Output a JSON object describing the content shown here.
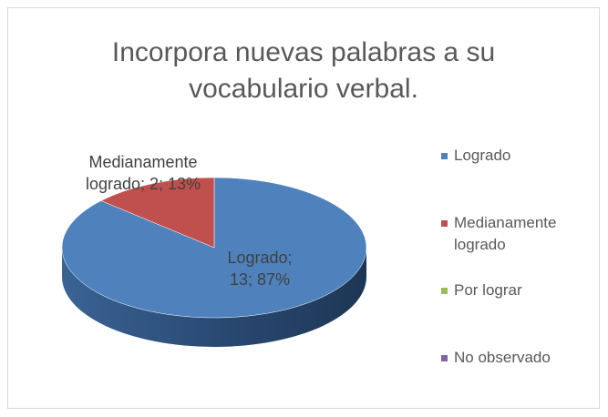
{
  "chart_data": {
    "type": "pie",
    "title": "Incorpora nuevas palabras a su vocabulario verbal.",
    "categories": [
      "Logrado",
      "Medianamente logrado",
      "Por lograr",
      "No observado"
    ],
    "values": [
      13,
      2,
      0,
      0
    ],
    "value_labels": [
      "Logrado; 13; 87%",
      "Medianamente logrado; 2; 13%",
      null,
      null
    ],
    "colors": [
      "#4f81bd",
      "#c0504d",
      "#9bbb59",
      "#8064a2"
    ],
    "legend": "right"
  }
}
